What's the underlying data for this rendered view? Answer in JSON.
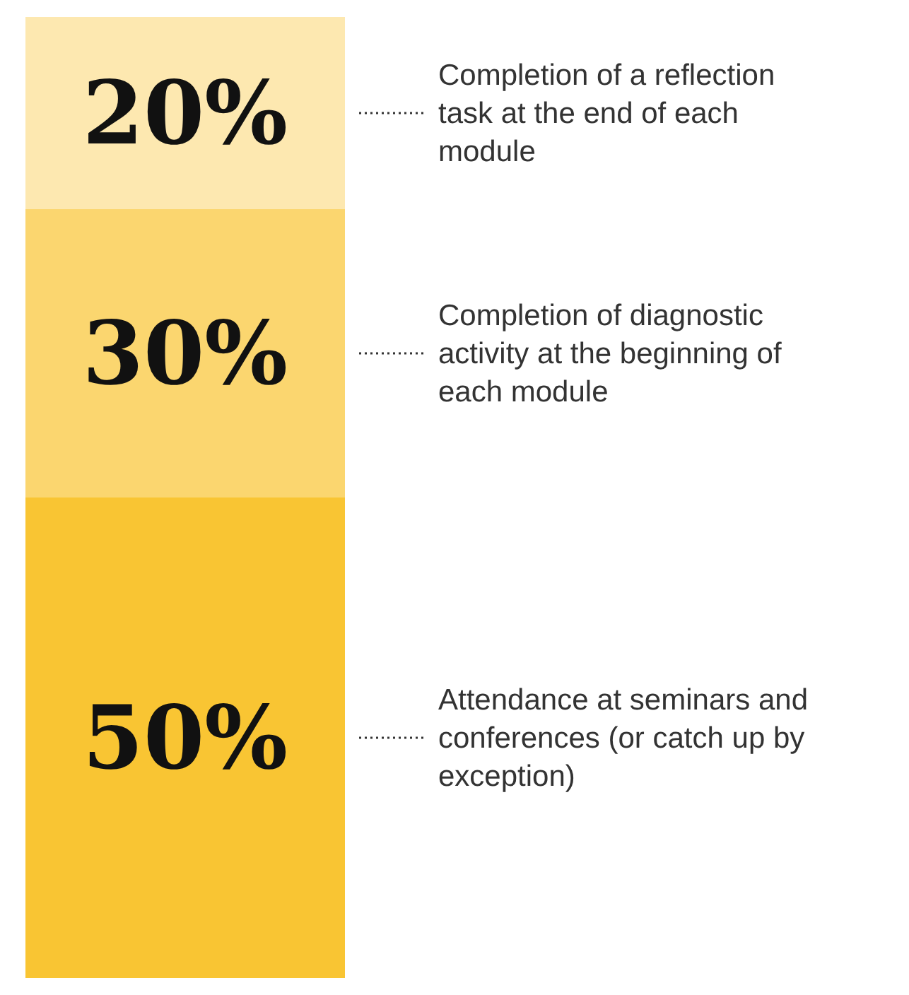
{
  "chart_data": {
    "type": "bar",
    "stacked": true,
    "categories": [
      null
    ],
    "series": [
      {
        "name": "Attendance at seminars and conferences (or catch up by exception)",
        "color": "#f9c533",
        "values": [
          50
        ],
        "value_labels": [
          "50%"
        ]
      },
      {
        "name": "Completion of diagnostic activity at the beginning of each module",
        "color": "#fbd66f",
        "values": [
          30
        ],
        "value_labels": [
          "30%"
        ]
      },
      {
        "name": "Completion of a reflection task at the end of each module",
        "color": "#fde8b0",
        "values": [
          20
        ],
        "value_labels": [
          "20%"
        ]
      }
    ]
  }
}
